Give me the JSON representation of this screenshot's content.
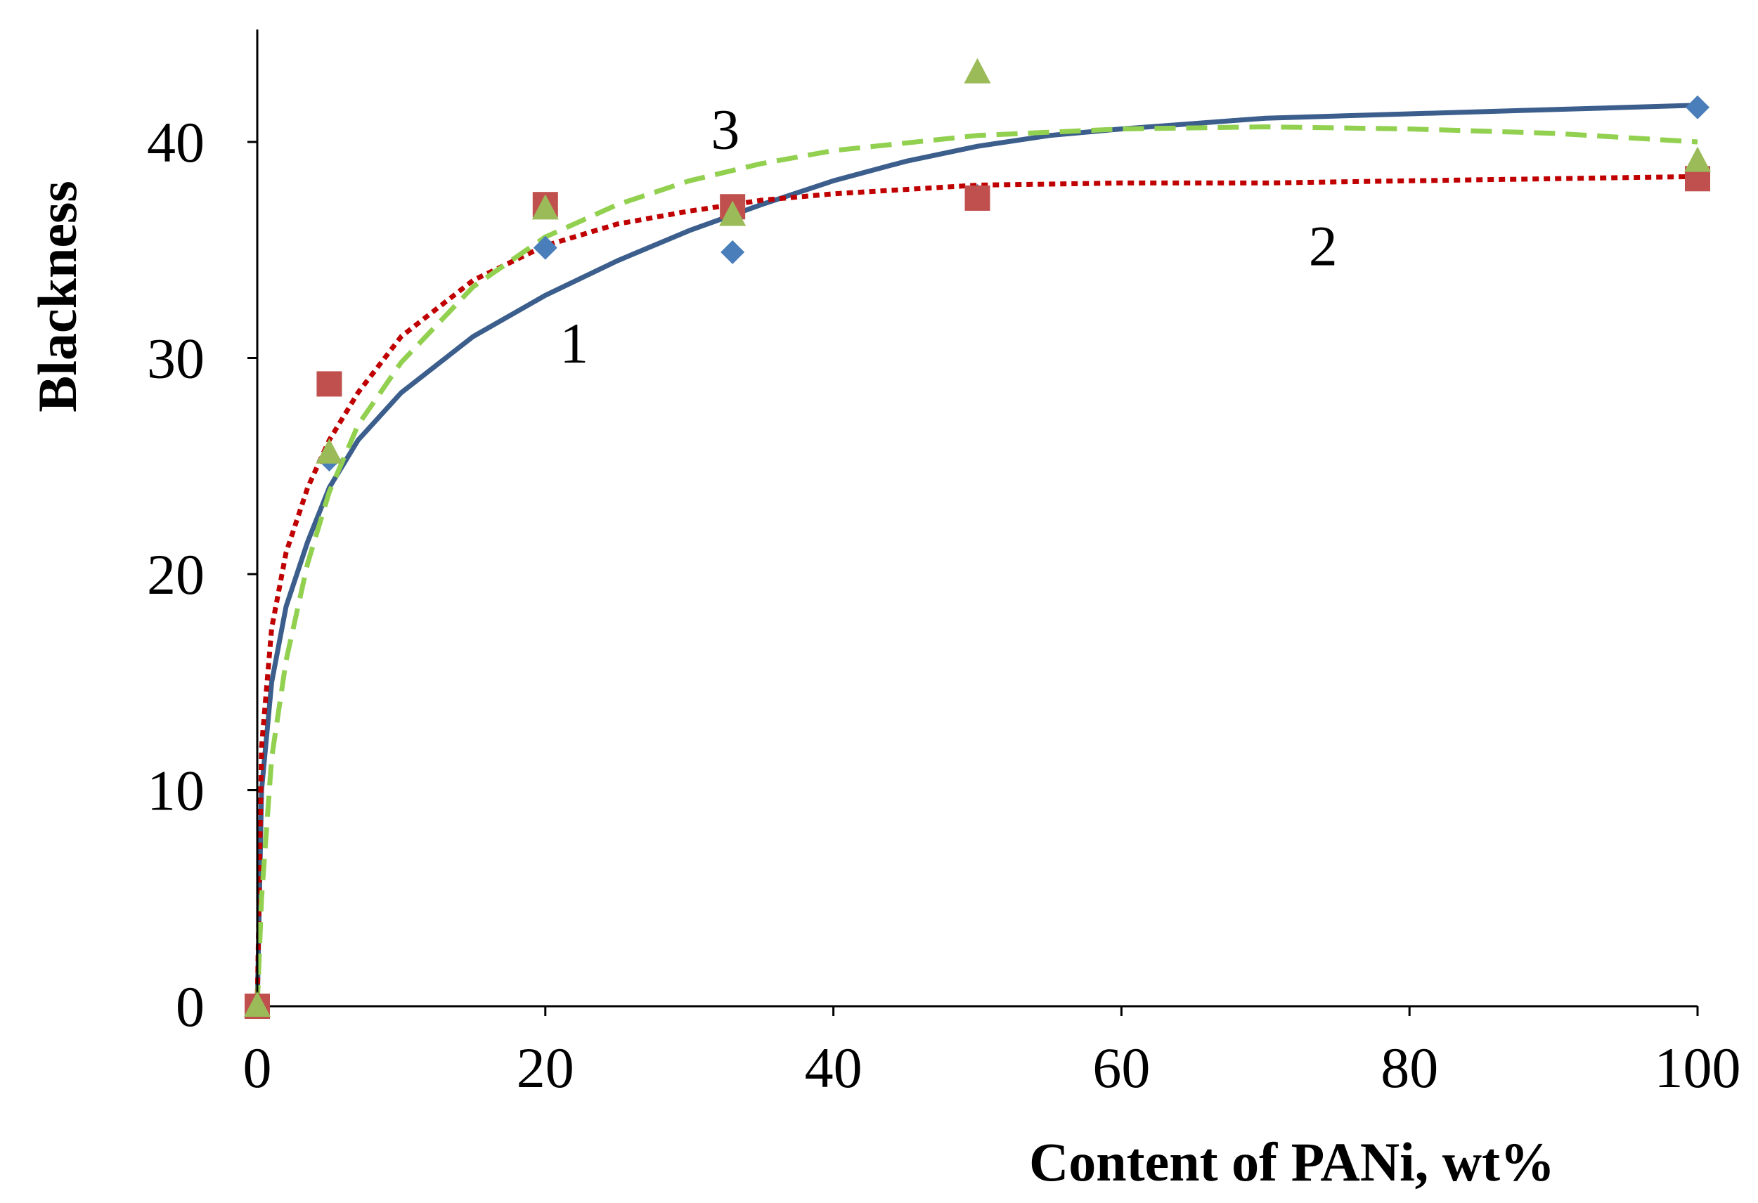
{
  "chart_data": {
    "type": "scatter",
    "title": "",
    "xlabel": "Content of PANi, wt%",
    "ylabel": "Blackness",
    "xlim": [
      0,
      100
    ],
    "ylim": [
      0,
      45
    ],
    "x_ticks": [
      0,
      20,
      40,
      60,
      80,
      100
    ],
    "y_ticks": [
      0,
      10,
      20,
      30,
      40
    ],
    "x_tick_labels": [
      "0",
      "20",
      "40",
      "60",
      "80",
      "100"
    ],
    "y_tick_labels": [
      "0",
      "10",
      "20",
      "30",
      "40"
    ],
    "grid": false,
    "legend": "none",
    "series": [
      {
        "name": "1",
        "marker": "diamond",
        "color": "#4a7ebb",
        "line_color": "#3b5e8c",
        "line_style": "solid",
        "points": [
          [
            0,
            0
          ],
          [
            5,
            25.3
          ],
          [
            20,
            35.1
          ],
          [
            33,
            34.9
          ],
          [
            50,
            37.5
          ],
          [
            100,
            41.6
          ]
        ],
        "trend": [
          [
            0,
            0
          ],
          [
            0.3,
            10
          ],
          [
            1,
            15
          ],
          [
            2,
            18.5
          ],
          [
            3.5,
            21.5
          ],
          [
            5,
            24
          ],
          [
            7,
            26.2
          ],
          [
            10,
            28.4
          ],
          [
            15,
            31
          ],
          [
            20,
            32.9
          ],
          [
            25,
            34.5
          ],
          [
            30,
            35.9
          ],
          [
            35,
            37.1
          ],
          [
            40,
            38.2
          ],
          [
            45,
            39.1
          ],
          [
            50,
            39.8
          ],
          [
            55,
            40.3
          ],
          [
            60,
            40.6
          ],
          [
            70,
            41.1
          ],
          [
            80,
            41.3
          ],
          [
            90,
            41.5
          ],
          [
            100,
            41.7
          ]
        ],
        "label": "1",
        "label_pos": [
          22,
          30.7
        ]
      },
      {
        "name": "2",
        "marker": "square",
        "color": "#c0504d",
        "line_color": "#c00000",
        "line_style": "dotted",
        "points": [
          [
            0,
            0
          ],
          [
            5,
            28.8
          ],
          [
            20,
            37.1
          ],
          [
            33,
            37
          ],
          [
            50,
            37.4
          ],
          [
            100,
            38.3
          ]
        ],
        "trend": [
          [
            0,
            0
          ],
          [
            0.3,
            12
          ],
          [
            1,
            17.5
          ],
          [
            2,
            21
          ],
          [
            3.5,
            24
          ],
          [
            5,
            26.2
          ],
          [
            7,
            28.4
          ],
          [
            10,
            31
          ],
          [
            15,
            33.6
          ],
          [
            20,
            35.2
          ],
          [
            25,
            36.2
          ],
          [
            30,
            36.8
          ],
          [
            35,
            37.3
          ],
          [
            40,
            37.6
          ],
          [
            50,
            38
          ],
          [
            60,
            38.1
          ],
          [
            70,
            38.1
          ],
          [
            80,
            38.2
          ],
          [
            90,
            38.3
          ],
          [
            100,
            38.4
          ]
        ],
        "label": "2",
        "label_pos": [
          74,
          35.2
        ]
      },
      {
        "name": "3",
        "marker": "triangle",
        "color": "#9bbb59",
        "line_color": "#92d050",
        "line_style": "dashed",
        "points": [
          [
            0,
            0
          ],
          [
            5,
            25.6
          ],
          [
            20,
            36.9
          ],
          [
            33,
            36.6
          ],
          [
            50,
            43.2
          ],
          [
            100,
            39.1
          ]
        ],
        "trend": [
          [
            0,
            0
          ],
          [
            0.3,
            5
          ],
          [
            1,
            11.5
          ],
          [
            2,
            16
          ],
          [
            3.5,
            20.5
          ],
          [
            5,
            23.8
          ],
          [
            7,
            26.9
          ],
          [
            10,
            29.8
          ],
          [
            15,
            33.3
          ],
          [
            20,
            35.6
          ],
          [
            25,
            37.1
          ],
          [
            30,
            38.2
          ],
          [
            35,
            39
          ],
          [
            40,
            39.6
          ],
          [
            50,
            40.3
          ],
          [
            60,
            40.6
          ],
          [
            70,
            40.7
          ],
          [
            80,
            40.6
          ],
          [
            90,
            40.4
          ],
          [
            100,
            40
          ]
        ],
        "label": "3",
        "label_pos": [
          32.5,
          40.6
        ]
      }
    ]
  }
}
